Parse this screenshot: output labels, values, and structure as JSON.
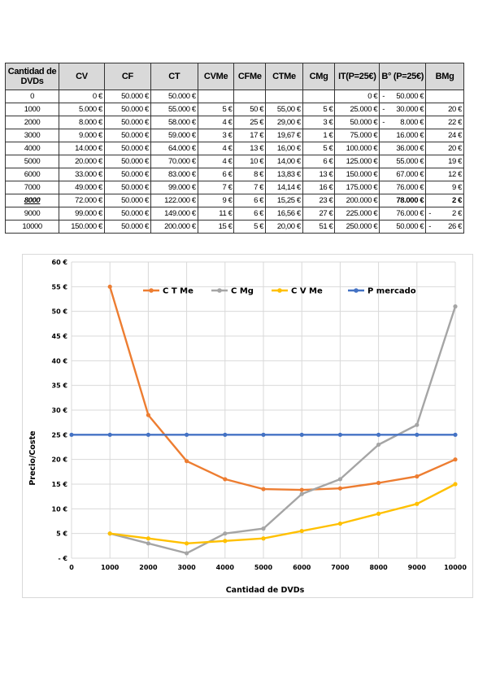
{
  "table": {
    "headers": [
      "Cantidad de DVDs",
      "CV",
      "CF",
      "CT",
      "CVMe",
      "CFMe",
      "CTMe",
      "CMg",
      "IT(P=25€)",
      "B° (P=25€)",
      "BMg"
    ],
    "rows": [
      {
        "q": "0",
        "cv": "0 €",
        "cf": "50.000 €",
        "ct": "50.000 €",
        "cvme": "",
        "cfme": "",
        "ctme": "",
        "cmg": "",
        "it": "0 €",
        "b_neg": "-",
        "b": "50.000 €",
        "bmg_neg": "",
        "bmg": ""
      },
      {
        "q": "1000",
        "cv": "5.000 €",
        "cf": "50.000 €",
        "ct": "55.000 €",
        "cvme": "5 €",
        "cfme": "50 €",
        "ctme": "55,00 €",
        "cmg": "5 €",
        "it": "25.000 €",
        "b_neg": "-",
        "b": "30.000 €",
        "bmg_neg": "",
        "bmg": "20 €"
      },
      {
        "q": "2000",
        "cv": "8.000 €",
        "cf": "50.000 €",
        "ct": "58.000 €",
        "cvme": "4 €",
        "cfme": "25 €",
        "ctme": "29,00 €",
        "cmg": "3 €",
        "it": "50.000 €",
        "b_neg": "-",
        "b": "8.000 €",
        "bmg_neg": "",
        "bmg": "22 €"
      },
      {
        "q": "3000",
        "cv": "9.000 €",
        "cf": "50.000 €",
        "ct": "59.000 €",
        "cvme": "3 €",
        "cfme": "17 €",
        "ctme": "19,67 €",
        "cmg": "1 €",
        "it": "75.000 €",
        "b_neg": "",
        "b": "16.000 €",
        "bmg_neg": "",
        "bmg": "24 €"
      },
      {
        "q": "4000",
        "cv": "14.000 €",
        "cf": "50.000 €",
        "ct": "64.000 €",
        "cvme": "4 €",
        "cfme": "13 €",
        "ctme": "16,00 €",
        "cmg": "5 €",
        "it": "100.000 €",
        "b_neg": "",
        "b": "36.000 €",
        "bmg_neg": "",
        "bmg": "20 €"
      },
      {
        "q": "5000",
        "cv": "20.000 €",
        "cf": "50.000 €",
        "ct": "70.000 €",
        "cvme": "4 €",
        "cfme": "10 €",
        "ctme": "14,00 €",
        "cmg": "6 €",
        "it": "125.000 €",
        "b_neg": "",
        "b": "55.000 €",
        "bmg_neg": "",
        "bmg": "19 €"
      },
      {
        "q": "6000",
        "cv": "33.000 €",
        "cf": "50.000 €",
        "ct": "83.000 €",
        "cvme": "6 €",
        "cfme": "8 €",
        "ctme": "13,83 €",
        "cmg": "13 €",
        "it": "150.000 €",
        "b_neg": "",
        "b": "67.000 €",
        "bmg_neg": "",
        "bmg": "12 €"
      },
      {
        "q": "7000",
        "cv": "49.000 €",
        "cf": "50.000 €",
        "ct": "99.000 €",
        "cvme": "7 €",
        "cfme": "7 €",
        "ctme": "14,14 €",
        "cmg": "16 €",
        "it": "175.000 €",
        "b_neg": "",
        "b": "76.000 €",
        "bmg_neg": "",
        "bmg": "9 €"
      },
      {
        "q": "8000",
        "cv": "72.000 €",
        "cf": "50.000 €",
        "ct": "122.000 €",
        "cvme": "9 €",
        "cfme": "6 €",
        "ctme": "15,25 €",
        "cmg": "23 €",
        "it": "200.000 €",
        "b_neg": "",
        "b": "78.000 €",
        "bmg_neg": "",
        "bmg": "2 €",
        "highlight": true
      },
      {
        "q": "9000",
        "cv": "99.000 €",
        "cf": "50.000 €",
        "ct": "149.000 €",
        "cvme": "11 €",
        "cfme": "6 €",
        "ctme": "16,56 €",
        "cmg": "27 €",
        "it": "225.000 €",
        "b_neg": "",
        "b": "76.000 €",
        "bmg_neg": "-",
        "bmg": "2 €"
      },
      {
        "q": "10000",
        "cv": "150.000 €",
        "cf": "50.000 €",
        "ct": "200.000 €",
        "cvme": "15 €",
        "cfme": "5 €",
        "ctme": "20,00 €",
        "cmg": "51 €",
        "it": "250.000 €",
        "b_neg": "",
        "b": "50.000 €",
        "bmg_neg": "-",
        "bmg": "26 €"
      }
    ]
  },
  "chart_data": {
    "type": "line",
    "x": [
      0,
      1000,
      2000,
      3000,
      4000,
      5000,
      6000,
      7000,
      8000,
      9000,
      10000
    ],
    "x_tick_labels": [
      "0",
      "1000",
      "2000",
      "3000",
      "4000",
      "5000",
      "6000",
      "7000",
      "8000",
      "9000",
      "10000"
    ],
    "y_tick_values": [
      0,
      5,
      10,
      15,
      20,
      25,
      30,
      35,
      40,
      45,
      50,
      55,
      60
    ],
    "y_tick_labels": [
      "- €",
      "5 €",
      "10 €",
      "15 €",
      "20 €",
      "25 €",
      "30 €",
      "35 €",
      "40 €",
      "45 €",
      "50 €",
      "55 €",
      "60 €"
    ],
    "xlim": [
      0,
      10000
    ],
    "ylim": [
      0,
      60
    ],
    "xlabel": "Cantidad de DVDs",
    "ylabel": "Precio/Coste",
    "grid": true,
    "legend_position": "top",
    "series": [
      {
        "name": "C T Me",
        "color": "#ed7d31",
        "x": [
          1000,
          2000,
          3000,
          4000,
          5000,
          6000,
          7000,
          8000,
          9000,
          10000
        ],
        "values": [
          55,
          29,
          19.67,
          16,
          14,
          13.83,
          14.14,
          15.25,
          16.56,
          20
        ]
      },
      {
        "name": "C Mg",
        "color": "#a5a5a5",
        "x": [
          1000,
          2000,
          3000,
          4000,
          5000,
          6000,
          7000,
          8000,
          9000,
          10000
        ],
        "values": [
          5,
          3,
          1,
          5,
          6,
          13,
          16,
          23,
          27,
          51
        ]
      },
      {
        "name": "C V Me",
        "color": "#ffc000",
        "x": [
          1000,
          2000,
          3000,
          4000,
          5000,
          6000,
          7000,
          8000,
          9000,
          10000
        ],
        "values": [
          5,
          4,
          3,
          3.5,
          4,
          5.5,
          7,
          9,
          11,
          15
        ]
      },
      {
        "name": "P mercado",
        "color": "#4472c4",
        "x": [
          0,
          1000,
          2000,
          3000,
          4000,
          5000,
          6000,
          7000,
          8000,
          9000,
          10000
        ],
        "values": [
          25,
          25,
          25,
          25,
          25,
          25,
          25,
          25,
          25,
          25,
          25
        ]
      }
    ]
  }
}
